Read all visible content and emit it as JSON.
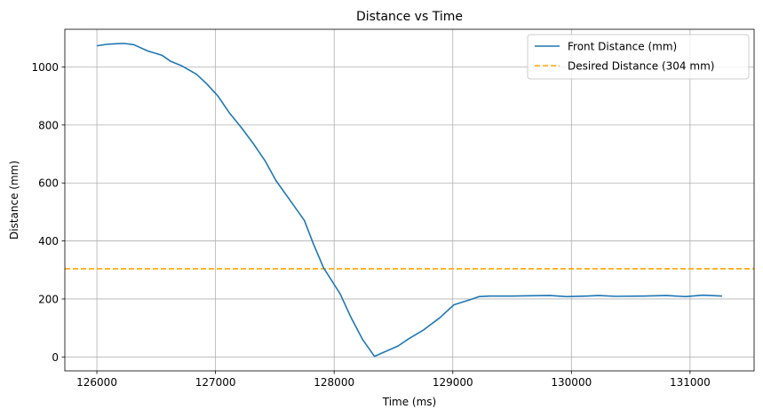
{
  "chart_data": {
    "type": "line",
    "title": "Distance vs Time",
    "xlabel": "Time (ms)",
    "ylabel": "Distance (mm)",
    "xlim": [
      125730,
      131540
    ],
    "ylim": [
      -48,
      1130
    ],
    "xticks": [
      126000,
      127000,
      128000,
      129000,
      130000,
      131000
    ],
    "yticks": [
      0,
      200,
      400,
      600,
      800,
      1000
    ],
    "grid": true,
    "legend_position": "top-right",
    "series": [
      {
        "name": "Front Distance (mm)",
        "color": "#1f77b4",
        "style": "solid",
        "x": [
          126000,
          126080,
          126160,
          126230,
          126310,
          126430,
          126550,
          126620,
          126710,
          126840,
          126930,
          127020,
          127120,
          127220,
          127320,
          127420,
          127510,
          127620,
          127750,
          127820,
          127910,
          128050,
          128140,
          128240,
          128340,
          128540,
          128630,
          128750,
          128890,
          129010,
          129150,
          129220,
          129310,
          129500,
          129670,
          129820,
          129960,
          130130,
          130230,
          130370,
          130610,
          130800,
          130960,
          131110,
          131270
        ],
        "y": [
          1073,
          1078,
          1080,
          1081,
          1077,
          1055,
          1040,
          1020,
          1005,
          975,
          940,
          900,
          840,
          790,
          735,
          675,
          608,
          545,
          470,
          395,
          308,
          218,
          138,
          60,
          2,
          38,
          63,
          92,
          135,
          180,
          198,
          208,
          210,
          210,
          211,
          212,
          208,
          210,
          212,
          209,
          210,
          212,
          208,
          213,
          210
        ]
      },
      {
        "name": "Desired Distance (304 mm)",
        "color": "#ffa500",
        "style": "dashed",
        "hline": 304
      }
    ]
  }
}
